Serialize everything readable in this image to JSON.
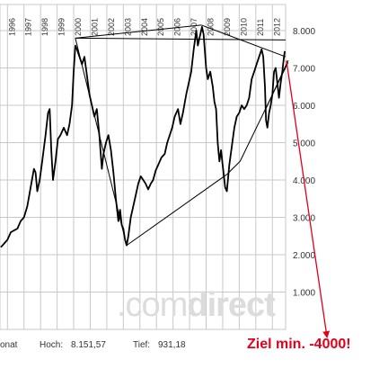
{
  "chart_data": {
    "type": "line",
    "y_ticks": [
      {
        "v": 1000,
        "label": "1.000"
      },
      {
        "v": 2000,
        "label": "2.000"
      },
      {
        "v": 3000,
        "label": "3.000"
      },
      {
        "v": 4000,
        "label": "4.000"
      },
      {
        "v": 5000,
        "label": "5.000"
      },
      {
        "v": 6000,
        "label": "6.000"
      },
      {
        "v": 7000,
        "label": "7.000"
      },
      {
        "v": 8000,
        "label": "8.000"
      }
    ],
    "year_ticks": [
      "1996",
      "1997",
      "1998",
      "1999",
      "2000",
      "2001",
      "2002",
      "2003",
      "2004",
      "2005",
      "2006",
      "2007",
      "2008",
      "2009",
      "2010",
      "2011",
      "2012"
    ],
    "ylim": [
      0,
      8700
    ],
    "xlim": [
      1995.55,
      2012.8
    ],
    "grid": true,
    "series": [
      {
        "points": [
          [
            1995.6,
            2200
          ],
          [
            1995.8,
            2300
          ],
          [
            1996.0,
            2400
          ],
          [
            1996.2,
            2600
          ],
          [
            1996.4,
            2650
          ],
          [
            1996.6,
            2700
          ],
          [
            1996.8,
            2900
          ],
          [
            1997.0,
            3000
          ],
          [
            1997.2,
            3300
          ],
          [
            1997.4,
            3800
          ],
          [
            1997.6,
            4300
          ],
          [
            1997.7,
            4200
          ],
          [
            1997.8,
            3700
          ],
          [
            1997.95,
            4000
          ],
          [
            1998.1,
            4500
          ],
          [
            1998.3,
            5200
          ],
          [
            1998.45,
            5800
          ],
          [
            1998.55,
            5900
          ],
          [
            1998.65,
            4800
          ],
          [
            1998.75,
            4000
          ],
          [
            1998.9,
            4500
          ],
          [
            1999.05,
            5100
          ],
          [
            1999.2,
            5200
          ],
          [
            1999.4,
            5400
          ],
          [
            1999.6,
            5200
          ],
          [
            1999.75,
            5500
          ],
          [
            1999.9,
            6000
          ],
          [
            2000.0,
            6900
          ],
          [
            2000.1,
            7600
          ],
          [
            2000.2,
            7500
          ],
          [
            2000.35,
            7300
          ],
          [
            2000.5,
            7100
          ],
          [
            2000.65,
            7300
          ],
          [
            2000.8,
            6800
          ],
          [
            2000.95,
            6300
          ],
          [
            2001.1,
            6000
          ],
          [
            2001.25,
            5700
          ],
          [
            2001.4,
            5900
          ],
          [
            2001.55,
            5200
          ],
          [
            2001.7,
            4300
          ],
          [
            2001.8,
            4700
          ],
          [
            2001.95,
            5000
          ],
          [
            2002.1,
            5200
          ],
          [
            2002.25,
            4800
          ],
          [
            2002.4,
            4200
          ],
          [
            2002.55,
            3500
          ],
          [
            2002.7,
            2900
          ],
          [
            2002.8,
            3200
          ],
          [
            2002.9,
            2800
          ],
          [
            2003.0,
            2700
          ],
          [
            2003.1,
            2400
          ],
          [
            2003.2,
            2250
          ],
          [
            2003.3,
            2500
          ],
          [
            2003.45,
            3000
          ],
          [
            2003.6,
            3300
          ],
          [
            2003.75,
            3600
          ],
          [
            2003.9,
            3900
          ],
          [
            2004.05,
            4100
          ],
          [
            2004.2,
            4000
          ],
          [
            2004.35,
            3900
          ],
          [
            2004.5,
            3750
          ],
          [
            2004.65,
            3900
          ],
          [
            2004.8,
            4000
          ],
          [
            2004.95,
            4250
          ],
          [
            2005.1,
            4400
          ],
          [
            2005.3,
            4600
          ],
          [
            2005.5,
            4700
          ],
          [
            2005.65,
            5000
          ],
          [
            2005.8,
            5200
          ],
          [
            2005.95,
            5400
          ],
          [
            2006.1,
            5700
          ],
          [
            2006.3,
            5900
          ],
          [
            2006.45,
            5500
          ],
          [
            2006.6,
            5800
          ],
          [
            2006.8,
            6300
          ],
          [
            2006.95,
            6600
          ],
          [
            2007.1,
            6900
          ],
          [
            2007.25,
            7500
          ],
          [
            2007.4,
            8000
          ],
          [
            2007.5,
            7600
          ],
          [
            2007.6,
            7800
          ],
          [
            2007.75,
            8100
          ],
          [
            2007.85,
            7900
          ],
          [
            2008.0,
            7000
          ],
          [
            2008.1,
            6700
          ],
          [
            2008.25,
            6900
          ],
          [
            2008.4,
            6500
          ],
          [
            2008.5,
            6100
          ],
          [
            2008.6,
            5900
          ],
          [
            2008.7,
            5000
          ],
          [
            2008.8,
            4500
          ],
          [
            2008.9,
            4800
          ],
          [
            2009.0,
            4400
          ],
          [
            2009.15,
            3800
          ],
          [
            2009.25,
            3700
          ],
          [
            2009.4,
            4400
          ],
          [
            2009.55,
            4900
          ],
          [
            2009.7,
            5400
          ],
          [
            2009.85,
            5700
          ],
          [
            2010.0,
            5800
          ],
          [
            2010.15,
            6000
          ],
          [
            2010.3,
            5900
          ],
          [
            2010.45,
            6000
          ],
          [
            2010.6,
            6200
          ],
          [
            2010.75,
            6700
          ],
          [
            2010.9,
            6900
          ],
          [
            2011.05,
            7100
          ],
          [
            2011.2,
            7300
          ],
          [
            2011.35,
            7500
          ],
          [
            2011.45,
            7300
          ],
          [
            2011.55,
            6500
          ],
          [
            2011.62,
            5600
          ],
          [
            2011.7,
            5400
          ],
          [
            2011.8,
            5800
          ],
          [
            2011.9,
            6000
          ],
          [
            2012.0,
            6300
          ],
          [
            2012.1,
            6900
          ],
          [
            2012.2,
            7000
          ],
          [
            2012.3,
            6600
          ],
          [
            2012.4,
            6200
          ],
          [
            2012.5,
            6600
          ],
          [
            2012.6,
            6900
          ],
          [
            2012.7,
            7300
          ],
          [
            2012.75,
            7450
          ]
        ]
      }
    ],
    "trendlines": [
      {
        "x": [
          2000.1,
          2012.8
        ],
        "y": [
          7800,
          7750
        ]
      },
      {
        "x": [
          2000.1,
          2007.7
        ],
        "y": [
          7800,
          8150
        ]
      },
      {
        "x": [
          2007.7,
          2012.8
        ],
        "y": [
          8150,
          7300
        ]
      },
      {
        "x": [
          2000.1,
          2003.2
        ],
        "y": [
          7800,
          2250
        ]
      },
      {
        "x": [
          2003.2,
          2009.25
        ],
        "y": [
          2250,
          4150
        ]
      },
      {
        "x": [
          2009.25,
          2010.05
        ],
        "y": [
          4150,
          4500
        ]
      },
      {
        "x": [
          2010.05,
          2012.95
        ],
        "y": [
          4500,
          7150
        ]
      },
      {
        "x": [
          2011.6,
          2012.95
        ],
        "y": [
          5900,
          7200
        ]
      }
    ],
    "footer": {
      "interval": "onat",
      "high_label": "Hoch:",
      "high_value": "8.151,57",
      "low_label": "Tief:",
      "low_value": "931,18"
    },
    "target_text": "Ziel min.  -4000!",
    "watermark_light": ".com",
    "watermark_bold": "direct",
    "colors": {
      "price": "#000000",
      "grid": "#c8c8c8",
      "target": "#e0001b",
      "watermark": "#dcdcdc"
    }
  }
}
